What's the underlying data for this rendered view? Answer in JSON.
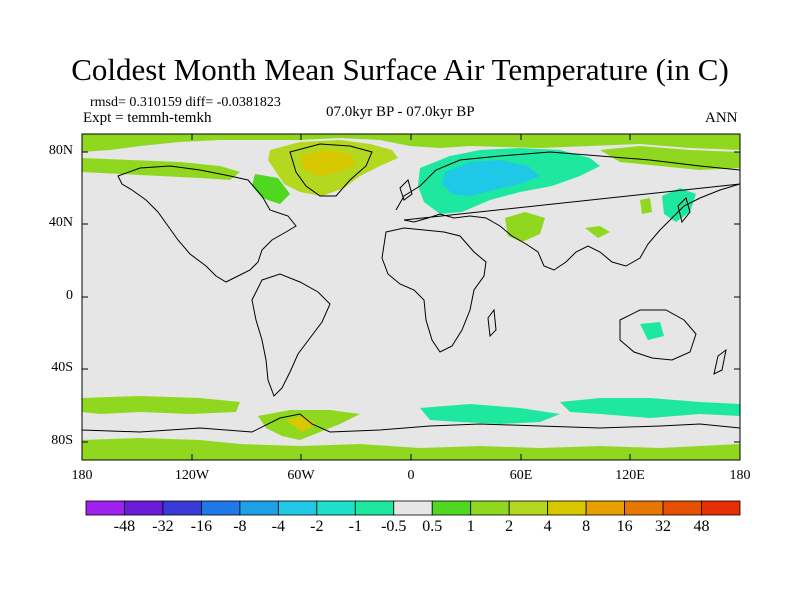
{
  "header": {
    "title": "Coldest Month Mean Surface Air Temperature (in C)",
    "stats": "rmsd= 0.310159 diff= -0.0381823",
    "experiment": "Expt = temmh-temkh",
    "period": "07.0kyr BP - 07.0kyr BP",
    "season": "ANN"
  },
  "map": {
    "projection": "cylindrical-equidistant",
    "lon_range": [
      -180,
      180
    ],
    "lat_range": [
      -90,
      90
    ],
    "background_color": "#e6e6e6",
    "coastline_color": "#000000",
    "y_ticks": [
      {
        "lat": 80,
        "label": "80N"
      },
      {
        "lat": 40,
        "label": "40N"
      },
      {
        "lat": 0,
        "label": "0"
      },
      {
        "lat": -40,
        "label": "40S"
      },
      {
        "lat": -80,
        "label": "80S"
      }
    ],
    "x_ticks": [
      {
        "lon": -180,
        "label": "180"
      },
      {
        "lon": -120,
        "label": "120W"
      },
      {
        "lon": -60,
        "label": "60W"
      },
      {
        "lon": 0,
        "label": "0"
      },
      {
        "lon": 60,
        "label": "60E"
      },
      {
        "lon": 120,
        "label": "120E"
      },
      {
        "lon": 180,
        "label": "180"
      }
    ]
  },
  "colorbar": {
    "colors": [
      "#a020f0",
      "#6a1cd8",
      "#3a3ad8",
      "#1e78e6",
      "#1ea0e6",
      "#1ec8e6",
      "#1ee0c8",
      "#1ee8a0",
      "#e6e6e6",
      "#50d820",
      "#90d820",
      "#b4d820",
      "#d8c800",
      "#e6a000",
      "#e67800",
      "#e65000",
      "#e63000"
    ],
    "labels": [
      "-48",
      "-32",
      "-16",
      "-8",
      "-4",
      "-2",
      "-1",
      "-0.5",
      "0.5",
      "1",
      "2",
      "4",
      "8",
      "16",
      "32",
      "48"
    ]
  }
}
